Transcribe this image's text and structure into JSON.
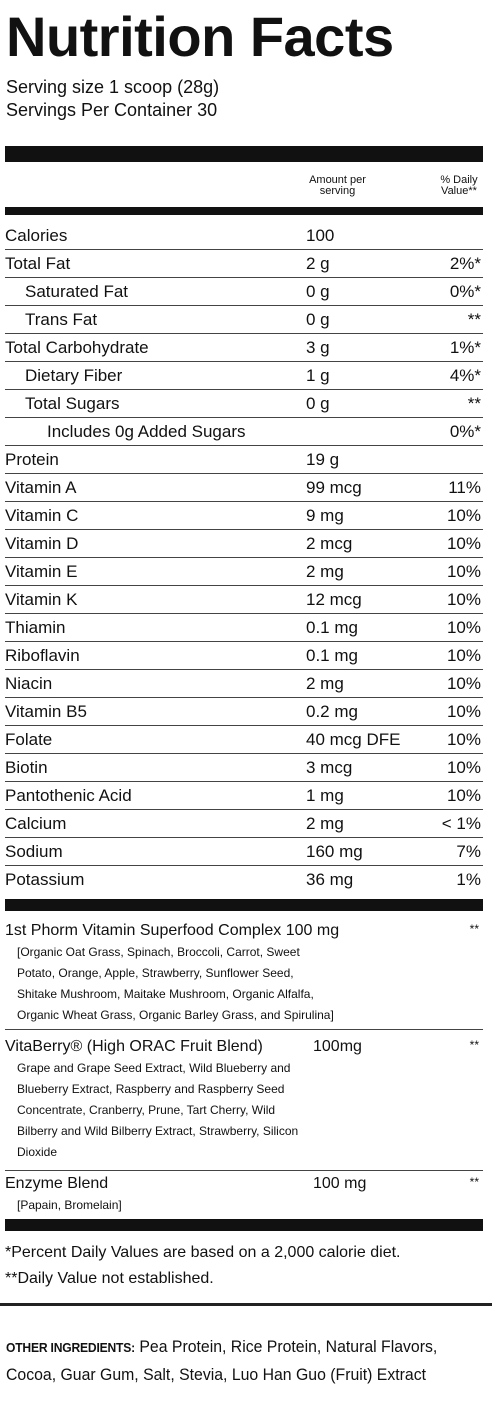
{
  "label": {
    "title": "Nutrition Facts",
    "serving_size": "Serving size 1 scoop (28g)",
    "servings_per_container": "Servings Per Container 30"
  },
  "columns": {
    "amount_line1": "Amount per",
    "amount_line2": "serving",
    "dv_line1": "% Daily",
    "dv_line2": "Value**"
  },
  "rows": [
    {
      "name": "Calories",
      "amount": "100",
      "dv": ""
    },
    {
      "name": "Total Fat",
      "amount": "2 g",
      "dv": "2%*"
    },
    {
      "name": "Saturated Fat",
      "amount": "0 g",
      "dv": "0%*"
    },
    {
      "name": "Trans Fat",
      "amount": "0 g",
      "dv": "**"
    },
    {
      "name": "Total Carbohydrate",
      "amount": "3 g",
      "dv": "1%*"
    },
    {
      "name": "Dietary Fiber",
      "amount": "1 g",
      "dv": "4%*"
    },
    {
      "name": "Total Sugars",
      "amount": "0 g",
      "dv": "**"
    },
    {
      "name": "Includes 0g Added Sugars",
      "amount": "",
      "dv": "0%*"
    },
    {
      "name": "Protein",
      "amount": "19 g",
      "dv": ""
    },
    {
      "name": "Vitamin A",
      "amount": "99 mcg",
      "dv": "11%"
    },
    {
      "name": "Vitamin C",
      "amount": "9 mg",
      "dv": "10%"
    },
    {
      "name": "Vitamin D",
      "amount": "2 mcg",
      "dv": "10%"
    },
    {
      "name": "Vitamin E",
      "amount": "2 mg",
      "dv": "10%"
    },
    {
      "name": "Vitamin K",
      "amount": "12 mcg",
      "dv": "10%"
    },
    {
      "name": "Thiamin",
      "amount": "0.1 mg",
      "dv": "10%"
    },
    {
      "name": "Riboflavin",
      "amount": "0.1 mg",
      "dv": "10%"
    },
    {
      "name": "Niacin",
      "amount": "2 mg",
      "dv": "10%"
    },
    {
      "name": "Vitamin B5",
      "amount": "0.2 mg",
      "dv": "10%"
    },
    {
      "name": "Folate",
      "amount": "40 mcg DFE",
      "dv": "10%"
    },
    {
      "name": "Biotin",
      "amount": "3 mcg",
      "dv": "10%"
    },
    {
      "name": "Pantothenic Acid",
      "amount": "1 mg",
      "dv": "10%"
    },
    {
      "name": "Calcium",
      "amount": "2 mg",
      "dv": "< 1%"
    },
    {
      "name": "Sodium",
      "amount": "160 mg",
      "dv": "7%"
    },
    {
      "name": "Potassium",
      "amount": "36 mg",
      "dv": "1%"
    }
  ],
  "blends": [
    {
      "title": "1st Phorm Vitamin Superfood Complex 100 mg",
      "amount": "",
      "dv": "**",
      "lines": [
        "[Organic Oat Grass, Spinach, Broccoli, Carrot, Sweet",
        "Potato, Orange, Apple, Strawberry, Sunflower Seed,",
        "Shitake Mushroom, Maitake Mushroom, Organic Alfalfa,",
        "Organic Wheat Grass, Organic Barley Grass, and Spirulina]"
      ]
    },
    {
      "title": "VitaBerry® (High ORAC Fruit Blend)",
      "amount": "100mg",
      "dv": "**",
      "lines": [
        "Grape and Grape Seed Extract, Wild Blueberry and",
        "Blueberry Extract, Raspberry and Raspberry Seed",
        "Concentrate, Cranberry, Prune, Tart Cherry, Wild",
        "Bilberry and Wild Bilberry Extract, Strawberry, Silicon",
        "Dioxide"
      ]
    },
    {
      "title": "Enzyme Blend",
      "amount": "100 mg",
      "dv": "**",
      "lines": [
        "[Papain, Bromelain]"
      ]
    }
  ],
  "footnotes": {
    "percent_dv": "*Percent Daily Values are based on a 2,000 calorie diet.",
    "not_established": "**Daily Value not established."
  },
  "other_ingredients": {
    "label": "OTHER INGREDIENTS:",
    "text": "Pea Protein, Rice Protein, Natural Flavors, Cocoa, Guar Gum, Salt, Stevia, Luo Han Guo (Fruit) Extract"
  }
}
